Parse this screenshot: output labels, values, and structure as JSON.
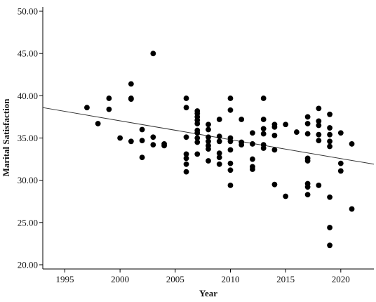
{
  "chart_data": {
    "type": "scatter",
    "xlabel": "Year",
    "ylabel": "Marital Satisfaction",
    "xlim": [
      1993,
      2023
    ],
    "ylim": [
      19.5,
      50.5
    ],
    "xticks": [
      1995,
      2000,
      2005,
      2010,
      2015,
      2020
    ],
    "xtick_labels": [
      "1995",
      "2000",
      "2005",
      "2010",
      "2015",
      "2020"
    ],
    "yticks": [
      20,
      25,
      30,
      35,
      40,
      45,
      50
    ],
    "ytick_labels": [
      "20.00",
      "25.00",
      "30.00",
      "35.00",
      "40.00",
      "45.00",
      "50.00"
    ],
    "grid": false,
    "colors": {
      "points": "#000000",
      "trend_line": "#333333",
      "axes": "#000000"
    },
    "points": [
      [
        1997,
        38.6
      ],
      [
        1998,
        36.7
      ],
      [
        1999,
        39.7
      ],
      [
        1999,
        38.4
      ],
      [
        2000,
        35.0
      ],
      [
        2001,
        41.4
      ],
      [
        2001,
        39.7
      ],
      [
        2001,
        39.6
      ],
      [
        2001,
        34.6
      ],
      [
        2002,
        36.0
      ],
      [
        2002,
        34.7
      ],
      [
        2002,
        32.7
      ],
      [
        2003,
        45.0
      ],
      [
        2003,
        35.1
      ],
      [
        2003,
        34.2
      ],
      [
        2004,
        34.3
      ],
      [
        2004,
        34.1
      ],
      [
        2006,
        39.7
      ],
      [
        2006,
        38.6
      ],
      [
        2006,
        35.1
      ],
      [
        2006,
        33.1
      ],
      [
        2006,
        32.6
      ],
      [
        2006,
        31.9
      ],
      [
        2006,
        31.0
      ],
      [
        2007,
        38.2
      ],
      [
        2007,
        37.9
      ],
      [
        2007,
        37.5
      ],
      [
        2007,
        37.1
      ],
      [
        2007,
        36.7
      ],
      [
        2007,
        35.9
      ],
      [
        2007,
        35.6
      ],
      [
        2007,
        35.0
      ],
      [
        2007,
        34.5
      ],
      [
        2007,
        33.1
      ],
      [
        2008,
        36.6
      ],
      [
        2008,
        36.0
      ],
      [
        2008,
        35.1
      ],
      [
        2008,
        34.6
      ],
      [
        2008,
        34.1
      ],
      [
        2008,
        33.7
      ],
      [
        2008,
        32.3
      ],
      [
        2009,
        37.2
      ],
      [
        2009,
        35.2
      ],
      [
        2009,
        34.6
      ],
      [
        2009,
        33.2
      ],
      [
        2009,
        32.7
      ],
      [
        2009,
        31.9
      ],
      [
        2010,
        39.7
      ],
      [
        2010,
        38.3
      ],
      [
        2010,
        35.0
      ],
      [
        2010,
        34.6
      ],
      [
        2010,
        33.6
      ],
      [
        2010,
        32.0
      ],
      [
        2010,
        31.2
      ],
      [
        2010,
        29.4
      ],
      [
        2011,
        37.2
      ],
      [
        2011,
        34.5
      ],
      [
        2011,
        34.2
      ],
      [
        2012,
        35.6
      ],
      [
        2012,
        34.3
      ],
      [
        2012,
        32.5
      ],
      [
        2012,
        31.6
      ],
      [
        2012,
        31.3
      ],
      [
        2013,
        39.7
      ],
      [
        2013,
        37.2
      ],
      [
        2013,
        36.1
      ],
      [
        2013,
        35.5
      ],
      [
        2013,
        34.2
      ],
      [
        2013,
        33.8
      ],
      [
        2014,
        36.6
      ],
      [
        2014,
        36.3
      ],
      [
        2014,
        35.3
      ],
      [
        2014,
        33.6
      ],
      [
        2014,
        29.5
      ],
      [
        2015,
        36.6
      ],
      [
        2015,
        28.1
      ],
      [
        2016,
        35.7
      ],
      [
        2017,
        37.5
      ],
      [
        2017,
        36.7
      ],
      [
        2017,
        35.5
      ],
      [
        2017,
        32.6
      ],
      [
        2017,
        32.3
      ],
      [
        2017,
        29.6
      ],
      [
        2017,
        29.2
      ],
      [
        2017,
        28.3
      ],
      [
        2018,
        38.5
      ],
      [
        2018,
        37.0
      ],
      [
        2018,
        36.5
      ],
      [
        2018,
        35.4
      ],
      [
        2018,
        34.7
      ],
      [
        2018,
        29.4
      ],
      [
        2019,
        37.8
      ],
      [
        2019,
        36.2
      ],
      [
        2019,
        35.4
      ],
      [
        2019,
        34.6
      ],
      [
        2019,
        34.0
      ],
      [
        2019,
        28.0
      ],
      [
        2019,
        24.4
      ],
      [
        2019,
        22.3
      ],
      [
        2020,
        35.6
      ],
      [
        2020,
        32.0
      ],
      [
        2020,
        31.1
      ],
      [
        2021,
        34.3
      ],
      [
        2021,
        26.6
      ]
    ],
    "trend_line": {
      "x": [
        1993,
        2023
      ],
      "y": [
        38.6,
        31.9
      ]
    }
  }
}
